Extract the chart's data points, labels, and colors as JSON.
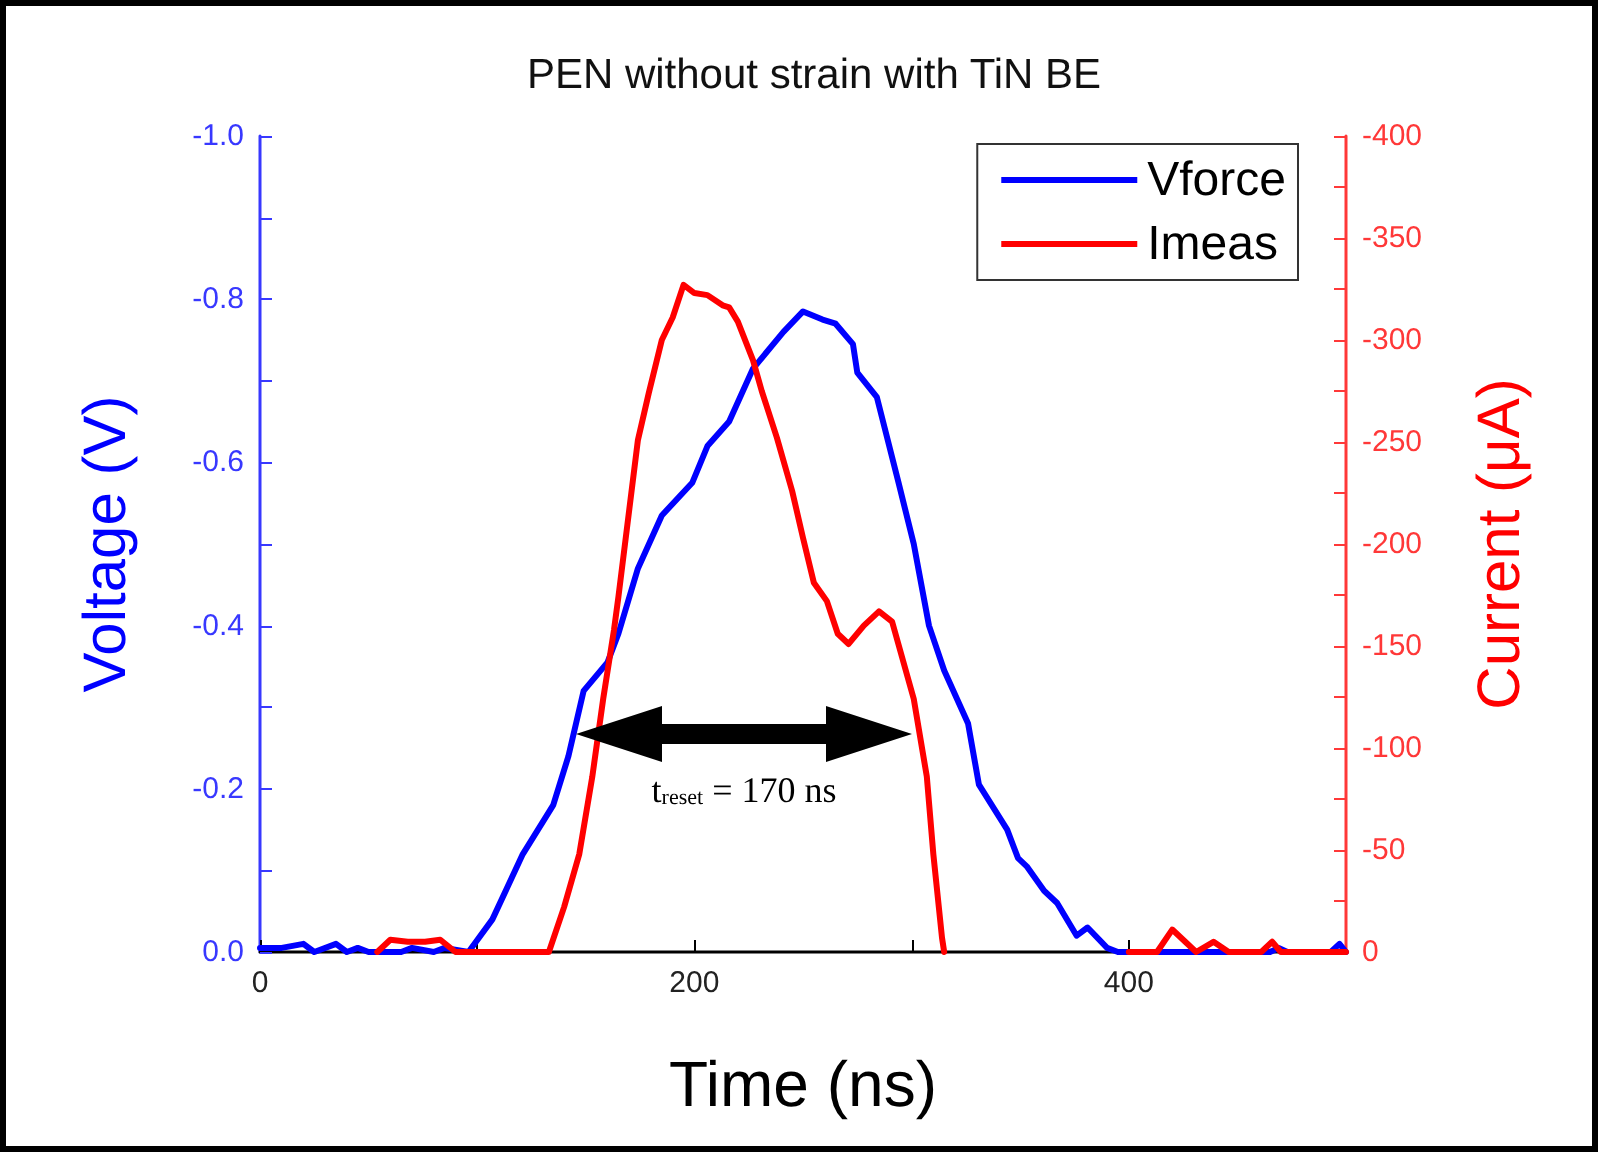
{
  "chart_data": {
    "type": "line",
    "title": "PEN without strain with TiN BE",
    "xlabel": "Time (ns)",
    "ylabel": "Voltage (V)",
    "y2label": "Current (μA)",
    "series": [
      {
        "name": "Vforce",
        "color": "#0000ff",
        "x": [
          0,
          10,
          20,
          25,
          35,
          40,
          45,
          50,
          65,
          70,
          80,
          85,
          96,
          107,
          121,
          128,
          135,
          142,
          149,
          160,
          165,
          174,
          185,
          199,
          206,
          216,
          227,
          241,
          250,
          259,
          265,
          273,
          275,
          284,
          294,
          301,
          308,
          315,
          326,
          331,
          344,
          349,
          353,
          361,
          367,
          376,
          381,
          390,
          395,
          465,
          469,
          473,
          493,
          497,
          500
        ],
        "values": [
          -0.005,
          -0.005,
          -0.01,
          0,
          -0.01,
          0,
          -0.005,
          0,
          0,
          -0.005,
          0,
          -0.005,
          0,
          -0.04,
          -0.12,
          -0.15,
          -0.18,
          -0.24,
          -0.32,
          -0.355,
          -0.39,
          -0.47,
          -0.535,
          -0.575,
          -0.62,
          -0.65,
          -0.715,
          -0.76,
          -0.785,
          -0.775,
          -0.77,
          -0.745,
          -0.71,
          -0.68,
          -0.575,
          -0.5,
          -0.4,
          -0.345,
          -0.28,
          -0.205,
          -0.15,
          -0.115,
          -0.105,
          -0.075,
          -0.06,
          -0.02,
          -0.03,
          -0.005,
          0,
          0,
          -0.005,
          0,
          0,
          -0.01,
          0
        ]
      },
      {
        "name": "Imeas",
        "color": "#ff0000",
        "axis": "y2",
        "x": [
          54,
          60,
          68,
          76,
          83,
          90,
          133,
          140,
          147,
          153,
          158,
          163,
          165,
          174,
          179,
          185,
          190,
          195,
          200,
          206,
          213,
          216,
          220,
          227,
          231,
          238,
          245,
          250,
          255,
          261,
          266,
          271,
          278,
          285,
          291,
          296,
          301,
          307,
          310,
          314,
          315,
          350,
          400,
          413,
          420,
          431,
          439,
          446,
          461,
          466,
          470,
          500
        ],
        "values": [
          0,
          -6,
          -5,
          -5,
          -6,
          0,
          0,
          -22,
          -48,
          -86,
          -124,
          -158,
          -174,
          -251,
          -274,
          -300,
          -311,
          -327,
          -323,
          -322,
          -317,
          -316,
          -309,
          -290,
          -275,
          -252,
          -226,
          -203,
          -181,
          -172,
          -156,
          -151,
          -160,
          -167,
          -162,
          -143,
          -124,
          -86,
          -48,
          -7,
          0,
          null,
          0,
          0,
          -11,
          0,
          -5,
          0,
          0,
          -5,
          0,
          0
        ]
      }
    ],
    "xlim": [
      0,
      500
    ],
    "xticks": [
      0,
      {
        "value": 100,
        "label": null
      },
      200,
      {
        "value": 300,
        "label": null
      },
      400
    ],
    "ylim": [
      0,
      -1.0
    ],
    "yticks": [
      {
        "value": 0,
        "label": "0.0"
      },
      {
        "value": -0.1,
        "label": null
      },
      -0.2,
      {
        "value": -0.3,
        "label": null
      },
      -0.4,
      {
        "value": -0.5,
        "label": null
      },
      -0.6,
      {
        "value": -0.7,
        "label": null
      },
      -0.8,
      {
        "value": -0.9,
        "label": null
      },
      {
        "value": -1.0,
        "label": "-1.0"
      }
    ],
    "y2lim": [
      0,
      -400
    ],
    "y2ticks": [
      0,
      {
        "value": -25,
        "label": null
      },
      -50,
      {
        "value": -75,
        "label": null
      },
      -100,
      {
        "value": -125,
        "label": null
      },
      -150,
      {
        "value": -175,
        "label": null
      },
      -200,
      {
        "value": -225,
        "label": null
      },
      -250,
      {
        "value": -275,
        "label": null
      },
      -300,
      {
        "value": -325,
        "label": null
      },
      -350,
      {
        "value": -375,
        "label": null
      },
      -400
    ],
    "annotations": [
      "t$_{reset}$ = 170 ns"
    ],
    "legend": "top right",
    "grid": false,
    "marker": "none",
    "line_style": "solid"
  }
}
